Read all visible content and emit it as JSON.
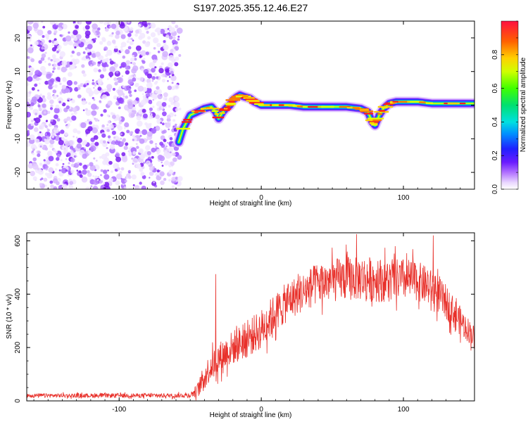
{
  "title": "S197.2025.355.12.46.E27",
  "chart_data": [
    {
      "type": "heatmap",
      "xlabel": "Height of straight line (km)",
      "ylabel": "Frequency (Hz)",
      "xlim": [
        -165,
        150
      ],
      "ylim": [
        -25,
        25
      ],
      "xticks": [
        -100,
        0,
        100
      ],
      "yticks": [
        -20,
        -10,
        0,
        10,
        20
      ],
      "xtick_labels": [
        "-100",
        "0",
        "100"
      ],
      "ytick_labels": [
        "-20",
        "-10",
        "0",
        "10",
        "20"
      ],
      "noise_region_x": [
        -165,
        -57
      ],
      "ridge": {
        "x": [
          -58,
          -55,
          -50,
          -45,
          -40,
          -35,
          -32,
          -30,
          -27,
          -25,
          -22,
          -20,
          -17,
          -15,
          -12,
          -8,
          -5,
          0,
          10,
          20,
          30,
          40,
          50,
          60,
          70,
          75,
          78,
          80,
          83,
          86,
          90,
          95,
          100,
          105,
          110,
          120,
          130,
          140,
          150
        ],
        "y": [
          -11,
          -7,
          -3,
          -2,
          -1,
          -0.5,
          -2,
          -4,
          -2,
          -1,
          0,
          1.5,
          2.5,
          3,
          2.5,
          2,
          1,
          0,
          0,
          0,
          -0.5,
          -0.5,
          -0.5,
          -0.5,
          -1,
          -2,
          -5,
          -6,
          -3,
          -1,
          0.5,
          1,
          1,
          1,
          1,
          0.5,
          0.5,
          0.5,
          0.5
        ]
      },
      "colorbar": {
        "label": "Normalized spectral amplitude",
        "range": [
          0,
          1
        ],
        "ticks": [
          0.0,
          0.2,
          0.4,
          0.6,
          0.8
        ],
        "tick_labels": [
          "0.0",
          "0.2",
          "0.4",
          "0.6",
          "0.8"
        ]
      }
    },
    {
      "type": "line",
      "color": "#e8302a",
      "xlabel": "Height of straight line (km)",
      "ylabel": "SNR (10 * v/v)",
      "xlim": [
        -165,
        150
      ],
      "ylim": [
        0,
        630
      ],
      "xticks": [
        -100,
        0,
        100
      ],
      "yticks": [
        0,
        200,
        400,
        600
      ],
      "xtick_labels": [
        "-100",
        "0",
        "100"
      ],
      "ytick_labels": [
        "0",
        "200",
        "400",
        "600"
      ],
      "envelope": {
        "x": [
          -165,
          -100,
          -60,
          -50,
          -45,
          -42,
          -38,
          -35,
          -30,
          -20,
          -10,
          0,
          10,
          20,
          30,
          40,
          50,
          60,
          70,
          80,
          90,
          100,
          110,
          120,
          130,
          140,
          150
        ],
        "mean": [
          20,
          20,
          20,
          22,
          40,
          70,
          110,
          130,
          160,
          200,
          230,
          270,
          330,
          380,
          410,
          440,
          450,
          460,
          460,
          455,
          450,
          455,
          450,
          420,
          370,
          300,
          240
        ],
        "spread": [
          8,
          8,
          8,
          10,
          25,
          40,
          50,
          55,
          60,
          65,
          70,
          75,
          75,
          75,
          75,
          80,
          80,
          85,
          85,
          85,
          80,
          80,
          75,
          70,
          65,
          55,
          40
        ]
      },
      "notable_peaks": [
        {
          "x": -32,
          "y": 475
        },
        {
          "x": 67,
          "y": 625
        },
        {
          "x": 121,
          "y": 620
        }
      ]
    }
  ]
}
